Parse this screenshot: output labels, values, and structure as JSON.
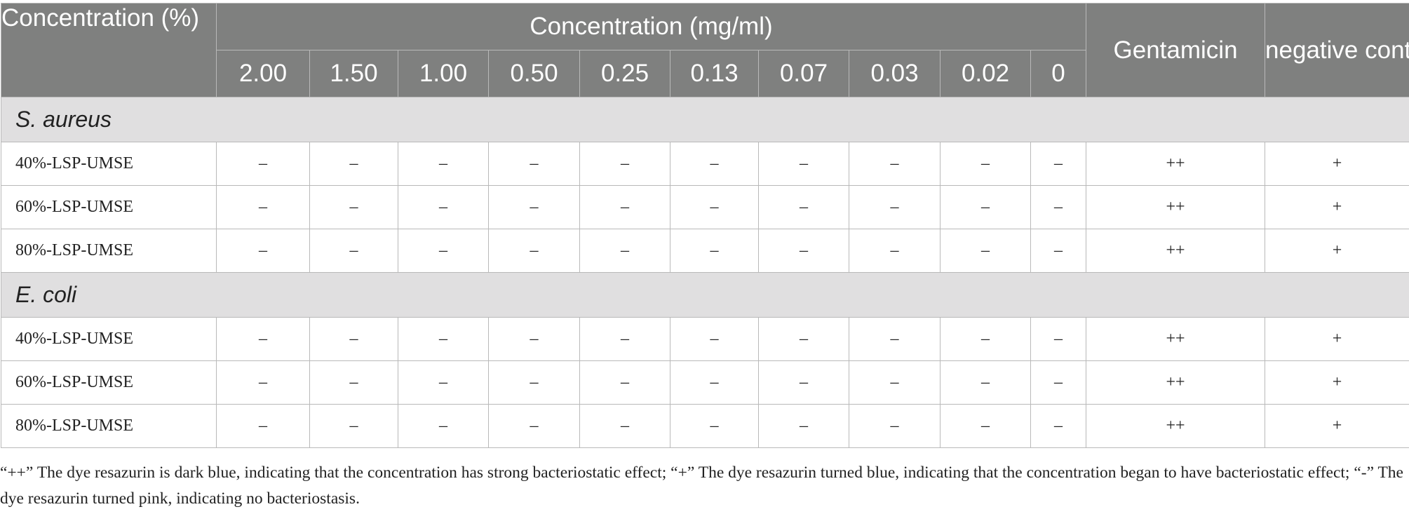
{
  "header": {
    "corner": "Concentration (%)",
    "group": "Concentration (mg/ml)",
    "concentrations": [
      "2.00",
      "1.50",
      "1.00",
      "0.50",
      "0.25",
      "0.13",
      "0.07",
      "0.03",
      "0.02",
      "0"
    ],
    "gentamicin": "Gentamicin",
    "negative_control": "negative control"
  },
  "sections": [
    {
      "name": "S. aureus",
      "rows": [
        {
          "label": "40%-LSP-UMSE",
          "cells": [
            "–",
            "–",
            "–",
            "–",
            "–",
            "–",
            "–",
            "–",
            "–",
            "–",
            "++",
            "+"
          ]
        },
        {
          "label": "60%-LSP-UMSE",
          "cells": [
            "–",
            "–",
            "–",
            "–",
            "–",
            "–",
            "–",
            "–",
            "–",
            "–",
            "++",
            "+"
          ]
        },
        {
          "label": "80%-LSP-UMSE",
          "cells": [
            "–",
            "–",
            "–",
            "–",
            "–",
            "–",
            "–",
            "–",
            "–",
            "–",
            "++",
            "+"
          ]
        }
      ]
    },
    {
      "name": "E. coli",
      "rows": [
        {
          "label": "40%-LSP-UMSE",
          "cells": [
            "–",
            "–",
            "–",
            "–",
            "–",
            "–",
            "–",
            "–",
            "–",
            "–",
            "++",
            "+"
          ]
        },
        {
          "label": "60%-LSP-UMSE",
          "cells": [
            "–",
            "–",
            "–",
            "–",
            "–",
            "–",
            "–",
            "–",
            "–",
            "–",
            "++",
            "+"
          ]
        },
        {
          "label": "80%-LSP-UMSE",
          "cells": [
            "–",
            "–",
            "–",
            "–",
            "–",
            "–",
            "–",
            "–",
            "–",
            "–",
            "++",
            "+"
          ]
        }
      ]
    }
  ],
  "footnote": "“++” The dye resazurin is dark blue, indicating that the concentration has strong bacteriostatic effect; “+” The dye resazurin turned blue, indicating that the concentration began to have bacteriostatic effect; “-” The dye resazurin turned pink, indicating no bacteriostasis."
}
